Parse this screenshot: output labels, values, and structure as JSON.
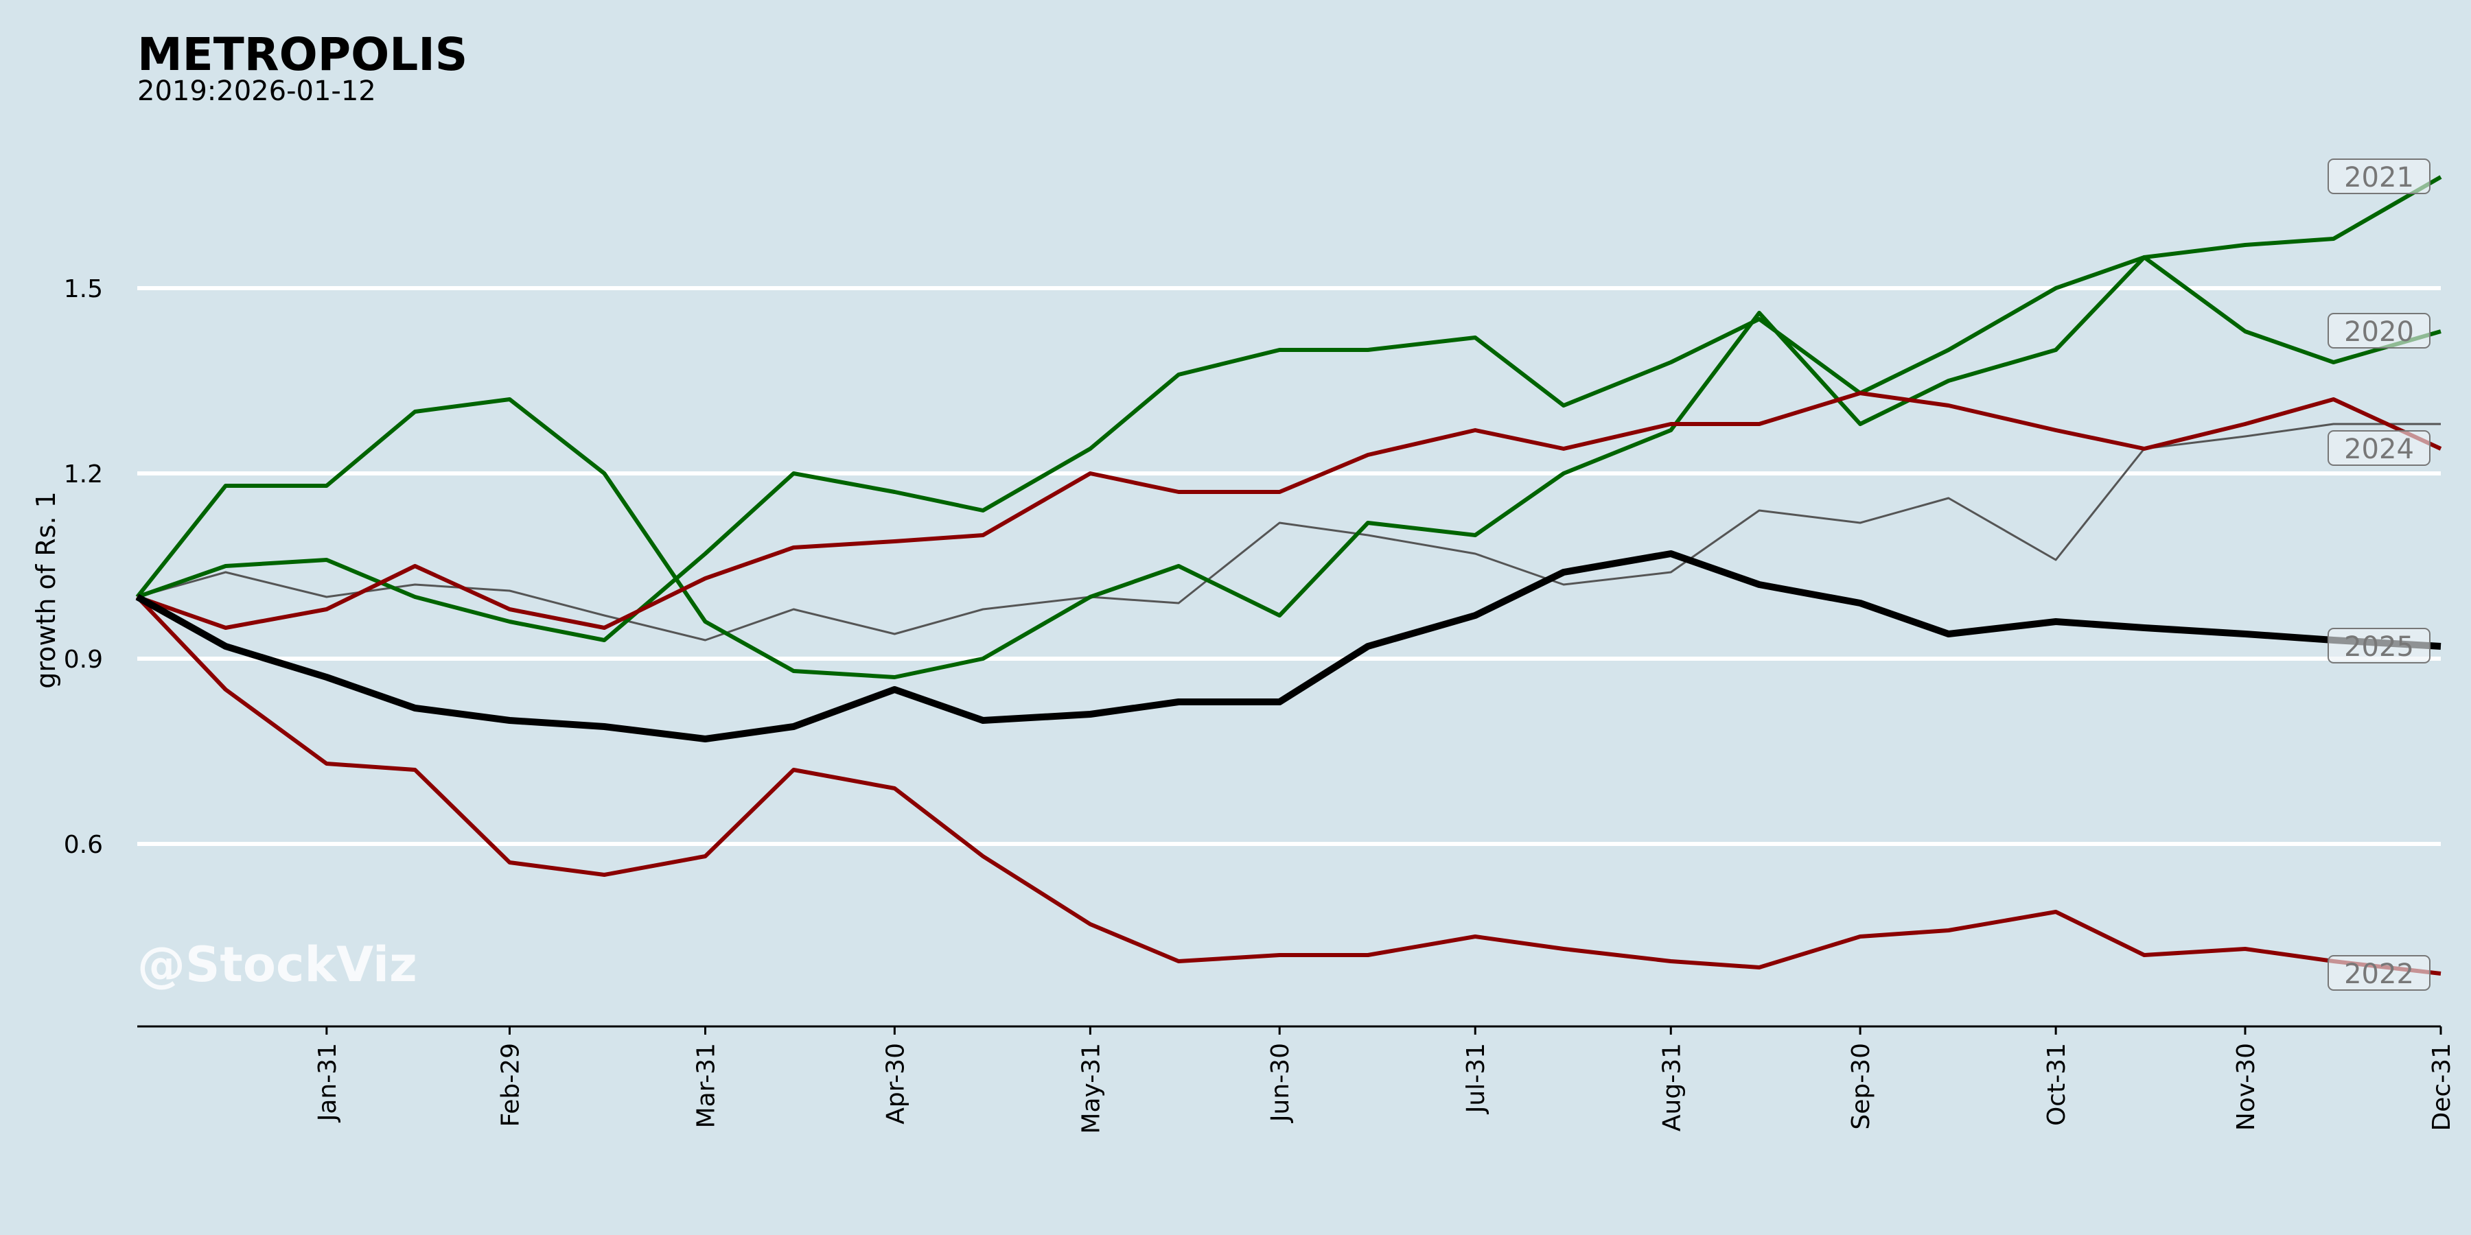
{
  "chart_data": {
    "type": "line",
    "title": "METROPOLIS",
    "subtitle": "2019:2026-01-12",
    "ylabel": "growth of Rs. 1",
    "xlabel": "",
    "watermark": "@StockViz",
    "ylim": [
      0.306,
      1.72
    ],
    "xlim": [
      1,
      366
    ],
    "grid": "horizontal",
    "yticks": [
      0.6,
      0.9,
      1.2,
      1.5
    ],
    "ytick_labels": [
      "0.6",
      "0.9",
      "1.2",
      "1.5"
    ],
    "xticks": [
      31,
      60,
      91,
      121,
      152,
      182,
      213,
      244,
      274,
      305,
      335,
      366
    ],
    "xtick_labels": [
      "Jan-31",
      "Feb-29",
      "Mar-31",
      "Apr-30",
      "May-31",
      "Jun-30",
      "Jul-31",
      "Aug-31",
      "Sep-30",
      "Oct-31",
      "Nov-30",
      "Dec-31"
    ],
    "x": [
      1,
      15,
      31,
      45,
      60,
      75,
      91,
      105,
      121,
      135,
      152,
      166,
      182,
      196,
      213,
      227,
      244,
      258,
      274,
      288,
      305,
      319,
      335,
      349,
      366
    ],
    "series": [
      {
        "name": "",
        "color": "#555555",
        "width": 3,
        "values": [
          1.0,
          1.04,
          1.0,
          1.02,
          1.01,
          0.97,
          0.93,
          0.98,
          0.94,
          0.98,
          1.0,
          0.99,
          1.12,
          1.1,
          1.07,
          1.02,
          1.04,
          1.14,
          1.12,
          1.16,
          1.06,
          1.24,
          1.26,
          1.28,
          1.28
        ]
      },
      {
        "name": "2020",
        "color": "#006400",
        "width": 6,
        "values": [
          1.0,
          1.18,
          1.18,
          1.3,
          1.32,
          1.2,
          0.96,
          0.88,
          0.87,
          0.9,
          1.0,
          1.05,
          0.97,
          1.12,
          1.1,
          1.2,
          1.27,
          1.46,
          1.28,
          1.35,
          1.4,
          1.55,
          1.43,
          1.38,
          1.43
        ]
      },
      {
        "name": "2021",
        "color": "#006400",
        "width": 6,
        "values": [
          1.0,
          1.05,
          1.06,
          1.0,
          0.96,
          0.93,
          1.07,
          1.2,
          1.17,
          1.14,
          1.24,
          1.36,
          1.4,
          1.4,
          1.42,
          1.31,
          1.38,
          1.45,
          1.33,
          1.4,
          1.5,
          1.55,
          1.57,
          1.58,
          1.68
        ]
      },
      {
        "name": "2022",
        "color": "#8b0000",
        "width": 6,
        "values": [
          1.0,
          0.85,
          0.73,
          0.72,
          0.57,
          0.55,
          0.58,
          0.72,
          0.69,
          0.58,
          0.47,
          0.41,
          0.42,
          0.42,
          0.45,
          0.43,
          0.41,
          0.4,
          0.45,
          0.46,
          0.49,
          0.42,
          0.43,
          0.41,
          0.39
        ]
      },
      {
        "name": "2024",
        "color": "#8b0000",
        "width": 6,
        "values": [
          1.0,
          0.95,
          0.98,
          1.05,
          0.98,
          0.95,
          1.03,
          1.08,
          1.09,
          1.1,
          1.2,
          1.17,
          1.17,
          1.23,
          1.27,
          1.24,
          1.28,
          1.28,
          1.33,
          1.31,
          1.27,
          1.24,
          1.28,
          1.32,
          1.24
        ]
      },
      {
        "name": "2025",
        "color": "#000000",
        "width": 10,
        "values": [
          1.0,
          0.92,
          0.87,
          0.82,
          0.8,
          0.79,
          0.77,
          0.79,
          0.85,
          0.8,
          0.81,
          0.83,
          0.83,
          0.92,
          0.97,
          1.04,
          1.07,
          1.02,
          0.99,
          0.94,
          0.96,
          0.95,
          0.94,
          0.93,
          0.92
        ]
      }
    ]
  }
}
